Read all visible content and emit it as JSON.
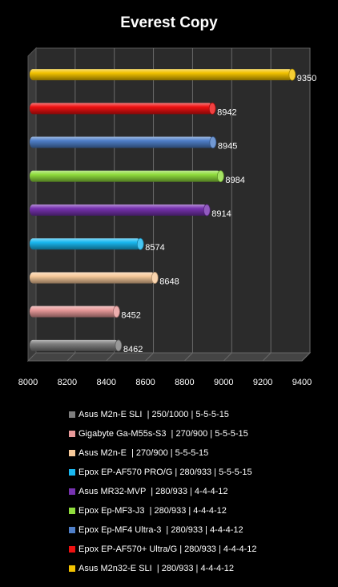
{
  "chart_data": {
    "type": "bar",
    "orientation": "horizontal",
    "title": "Everest Copy",
    "xlabel": "",
    "ylabel": "",
    "xlim": [
      8000,
      9400
    ],
    "xticks": [
      8000,
      8200,
      8400,
      8600,
      8800,
      9000,
      9200,
      9400
    ],
    "grid": true,
    "legend_position": "bottom",
    "series": [
      {
        "name": "Asus M2n32-E SLI  | 280/933 | 4-4-4-12",
        "value": 9350,
        "color": "#f2c200"
      },
      {
        "name": "Epox EP-AF570+ Ultra/G | 280/933 | 4-4-4-12",
        "value": 8942,
        "color": "#ee1111"
      },
      {
        "name": "Epox Ep-MF4 Ultra-3  | 280/933 | 4-4-4-12",
        "value": 8945,
        "color": "#4f7fc8"
      },
      {
        "name": "Epox Ep-MF3-J3  | 280/933 | 4-4-4-12",
        "value": 8984,
        "color": "#8fdc3c"
      },
      {
        "name": "Asus MR32-MVP  | 280/933 | 4-4-4-12",
        "value": 8914,
        "color": "#7732b0"
      },
      {
        "name": "Epox EP-AF570 PRO/G | 280/933 | 5-5-5-15",
        "value": 8574,
        "color": "#19b8f0"
      },
      {
        "name": "Asus M2n-E  | 270/900 | 5-5-5-15",
        "value": 8648,
        "color": "#f7c99a"
      },
      {
        "name": "Gigabyte Ga-M55s-S3  | 270/900 | 5-5-5-15",
        "value": 8452,
        "color": "#e89a9a"
      },
      {
        "name": "Asus M2n-E SLI  | 250/1000 | 5-5-5-15",
        "value": 8462,
        "color": "#7e7e7e"
      }
    ],
    "legend_order": [
      8,
      7,
      6,
      5,
      4,
      3,
      2,
      1,
      0
    ]
  }
}
